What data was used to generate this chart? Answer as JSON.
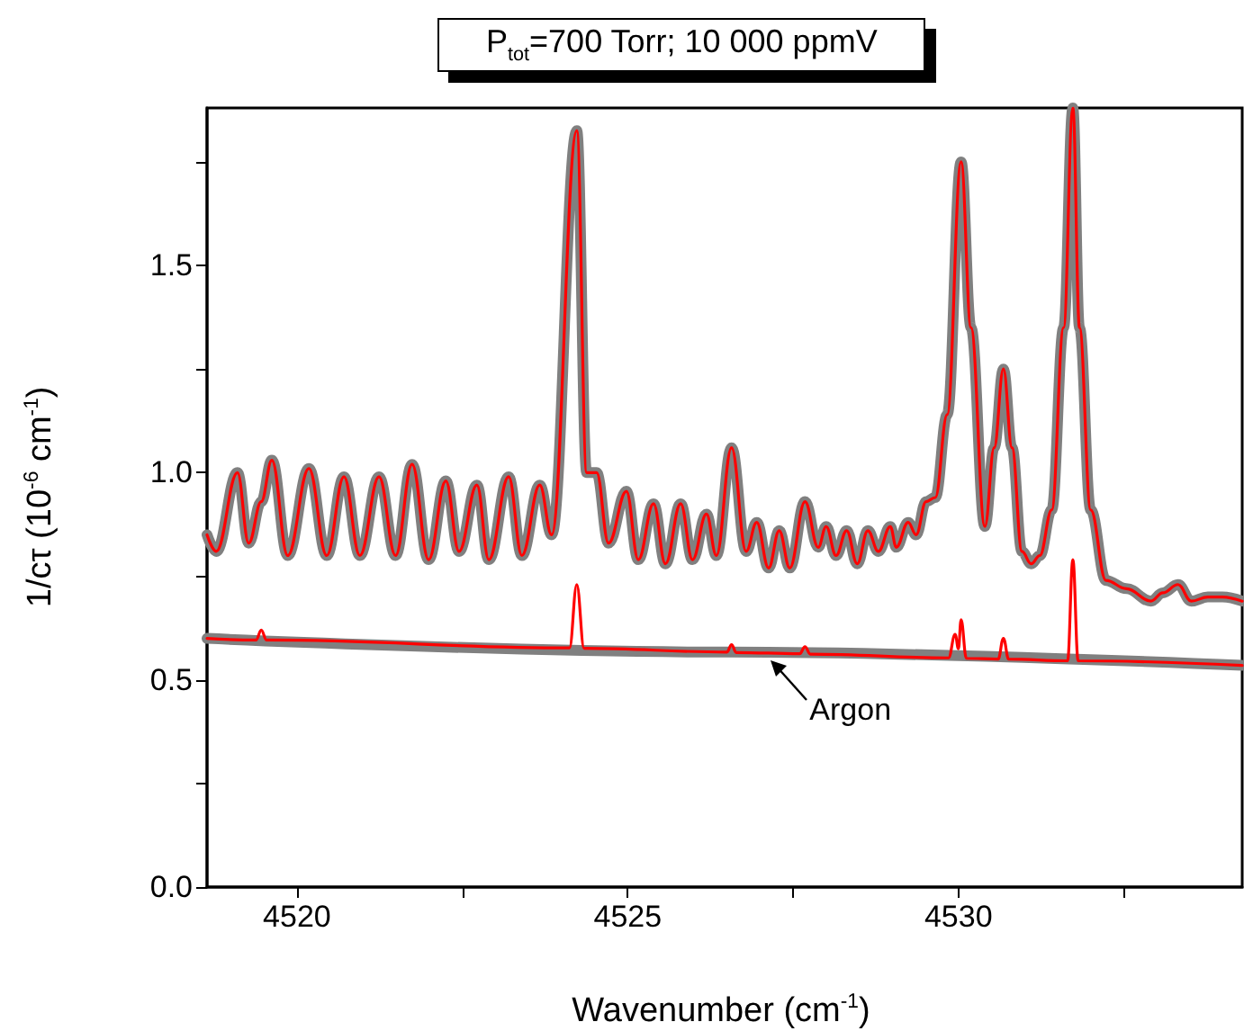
{
  "chart_data": {
    "type": "line",
    "title": "P$_{tot}$=700 Torr; 10 000 ppmV",
    "xlabel": "Wavenumber (cm$^{-1}$)",
    "ylabel": "1/cτ (10$^{-6}$ cm$^{-1}$)",
    "xlim": [
      4518.64,
      4534.29
    ],
    "ylim": [
      0,
      1.88
    ],
    "xticks": [
      4520,
      {
        "value": 4522.5,
        "label": null
      },
      4525,
      {
        "value": 4527.5,
        "label": null
      },
      4530,
      {
        "value": 4532.5,
        "label": null
      }
    ],
    "yticks": [
      {
        "value": 0,
        "label": "0.0"
      },
      {
        "value": 0.25,
        "label": null
      },
      0.5,
      {
        "value": 0.75,
        "label": null
      },
      {
        "value": 1,
        "label": "1.0"
      },
      {
        "value": 1.25,
        "label": null
      },
      1.5,
      {
        "value": 1.75,
        "label": null
      }
    ],
    "grid": false,
    "marker": "none",
    "line_style": "solid",
    "annotations": [
      {
        "text": "Argon",
        "x": 4527.15,
        "y": 0.555
      }
    ],
    "series": [
      {
        "color": "#808080",
        "x": [
          4518.64,
          4518.78,
          4519.1,
          4519.27,
          4519.46,
          4519.62,
          4519.86,
          4520.18,
          4520.45,
          4520.71,
          4520.95,
          4521.24,
          4521.49,
          4521.74,
          4521.99,
          4522.25,
          4522.45,
          4522.72,
          4522.9,
          4523.2,
          4523.4,
          4523.67,
          4523.85,
          4524.23,
          4524.38,
          4524.53,
          4524.71,
          4524.98,
          4525.16,
          4525.39,
          4525.57,
          4525.8,
          4525.98,
          4526.19,
          4526.34,
          4526.57,
          4526.79,
          4526.95,
          4527.13,
          4527.29,
          4527.45,
          4527.68,
          4527.88,
          4528.0,
          4528.15,
          4528.31,
          4528.47,
          4528.63,
          4528.79,
          4528.97,
          4529.06,
          4529.24,
          4529.36,
          4529.51,
          4529.65,
          4529.83,
          4530.04,
          4530.19,
          4530.4,
          4530.54,
          4530.68,
          4530.81,
          4530.96,
          4531.1,
          4531.23,
          4531.41,
          4531.59,
          4531.73,
          4531.83,
          4532.0,
          4532.23,
          4532.54,
          4532.91,
          4533.09,
          4533.32,
          4533.52,
          4533.77,
          4533.99,
          4534.29
        ],
        "values": [
          0.85,
          0.81,
          1.0,
          0.83,
          0.93,
          1.03,
          0.8,
          1.01,
          0.8,
          0.99,
          0.8,
          0.99,
          0.8,
          1.02,
          0.79,
          0.98,
          0.81,
          0.97,
          0.79,
          0.99,
          0.8,
          0.97,
          0.85,
          1.825,
          1.0,
          1.0,
          0.83,
          0.955,
          0.79,
          0.925,
          0.78,
          0.925,
          0.79,
          0.9,
          0.8,
          1.06,
          0.81,
          0.88,
          0.77,
          0.86,
          0.77,
          0.93,
          0.82,
          0.87,
          0.8,
          0.86,
          0.78,
          0.86,
          0.81,
          0.87,
          0.82,
          0.88,
          0.85,
          0.93,
          0.94,
          1.14,
          1.75,
          1.35,
          0.87,
          1.06,
          1.25,
          1.06,
          0.81,
          0.78,
          0.8,
          0.91,
          1.35,
          1.88,
          1.35,
          0.91,
          0.74,
          0.72,
          0.69,
          0.71,
          0.73,
          0.69,
          0.7,
          0.7,
          0.69
        ]
      },
      {
        "color": "#ff0000",
        "x": [
          4518.64,
          4518.78,
          4519.1,
          4519.27,
          4519.46,
          4519.62,
          4519.86,
          4520.18,
          4520.45,
          4520.71,
          4520.95,
          4521.24,
          4521.49,
          4521.74,
          4521.99,
          4522.25,
          4522.45,
          4522.72,
          4522.9,
          4523.2,
          4523.4,
          4523.67,
          4523.85,
          4524.23,
          4524.38,
          4524.53,
          4524.71,
          4524.98,
          4525.16,
          4525.39,
          4525.57,
          4525.8,
          4525.98,
          4526.19,
          4526.34,
          4526.57,
          4526.79,
          4526.95,
          4527.13,
          4527.29,
          4527.45,
          4527.68,
          4527.88,
          4528.0,
          4528.15,
          4528.31,
          4528.47,
          4528.63,
          4528.79,
          4528.97,
          4529.06,
          4529.24,
          4529.36,
          4529.51,
          4529.65,
          4529.83,
          4530.04,
          4530.19,
          4530.4,
          4530.54,
          4530.68,
          4530.81,
          4530.96,
          4531.1,
          4531.23,
          4531.41,
          4531.59,
          4531.73,
          4531.83,
          4532.0,
          4532.23,
          4532.54,
          4532.91,
          4533.09,
          4533.32,
          4533.52,
          4533.77,
          4533.99,
          4534.29
        ],
        "values": [
          0.85,
          0.81,
          1.0,
          0.83,
          0.93,
          1.03,
          0.8,
          1.01,
          0.8,
          0.99,
          0.8,
          0.99,
          0.8,
          1.02,
          0.79,
          0.98,
          0.81,
          0.97,
          0.79,
          0.99,
          0.8,
          0.97,
          0.85,
          1.825,
          1.0,
          1.0,
          0.83,
          0.955,
          0.79,
          0.925,
          0.78,
          0.925,
          0.79,
          0.9,
          0.8,
          1.06,
          0.81,
          0.88,
          0.77,
          0.86,
          0.77,
          0.93,
          0.82,
          0.87,
          0.8,
          0.86,
          0.78,
          0.86,
          0.81,
          0.87,
          0.82,
          0.88,
          0.85,
          0.93,
          0.94,
          1.14,
          1.75,
          1.35,
          0.87,
          1.06,
          1.25,
          1.06,
          0.81,
          0.78,
          0.8,
          0.91,
          1.35,
          1.88,
          1.35,
          0.91,
          0.74,
          0.72,
          0.69,
          0.71,
          0.73,
          0.69,
          0.7,
          0.7,
          0.69
        ]
      },
      {
        "color": "#808080",
        "x": [
          4518.64,
          4526.5,
          4534.29
        ],
        "values": [
          0.6,
          0.567,
          0.535
        ]
      },
      {
        "color": "#ff0000",
        "x": [
          4518.64,
          4519.38,
          4519.46,
          4519.54,
          4524.12,
          4524.23,
          4524.34,
          4526.5,
          4526.57,
          4526.64,
          4527.6,
          4527.68,
          4527.76,
          4529.85,
          4529.95,
          4530.0,
          4530.04,
          4530.12,
          4530.6,
          4530.68,
          4530.76,
          4531.65,
          4531.73,
          4531.81,
          4534.29
        ],
        "values": [
          0.6,
          0.596,
          0.62,
          0.596,
          0.577,
          0.73,
          0.576,
          0.567,
          0.585,
          0.566,
          0.563,
          0.58,
          0.562,
          0.553,
          0.61,
          0.575,
          0.645,
          0.552,
          0.55,
          0.6,
          0.55,
          0.546,
          0.79,
          0.546,
          0.535
        ]
      }
    ]
  }
}
